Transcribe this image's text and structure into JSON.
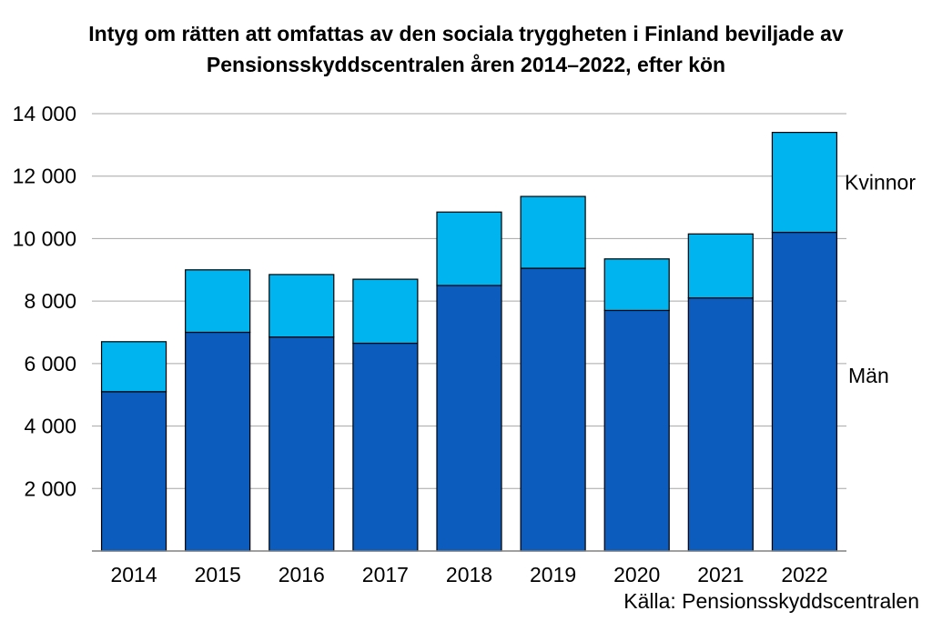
{
  "title_line1": "Intyg om rätten att omfattas av den sociala tryggheten i Finland beviljade av",
  "title_line2": "Pensionsskyddscentralen åren 2014–2022, efter kön",
  "source": "Källa: Pensionsskyddscentralen",
  "colors": {
    "man": "#0b5cbc",
    "kvinnor": "#00b4f0",
    "grid": "#a6a6a6",
    "axis": "#808080",
    "bar_border": "#000000"
  },
  "chart_data": {
    "type": "bar",
    "stacked": true,
    "title": "Intyg om rätten att omfattas av den sociala tryggheten i Finland beviljade av Pensionsskyddscentralen åren 2014–2022, efter kön",
    "xlabel": "",
    "ylabel": "",
    "categories": [
      "2014",
      "2015",
      "2016",
      "2017",
      "2018",
      "2019",
      "2020",
      "2021",
      "2022"
    ],
    "series": [
      {
        "name": "Män",
        "values": [
          5100,
          7000,
          6850,
          6650,
          8500,
          9050,
          7700,
          8100,
          10200
        ]
      },
      {
        "name": "Kvinnor",
        "values": [
          1600,
          2000,
          2000,
          2050,
          2350,
          2300,
          1650,
          2050,
          3200
        ]
      }
    ],
    "ylim": [
      0,
      14000
    ],
    "yticks": [
      2000,
      4000,
      6000,
      8000,
      10000,
      12000,
      14000
    ],
    "ytick_labels": [
      "2 000",
      "4 000",
      "6 000",
      "8 000",
      "10 000",
      "12 000",
      "14 000"
    ],
    "grid": true,
    "legend": "right, inline labels next to the last bar"
  }
}
